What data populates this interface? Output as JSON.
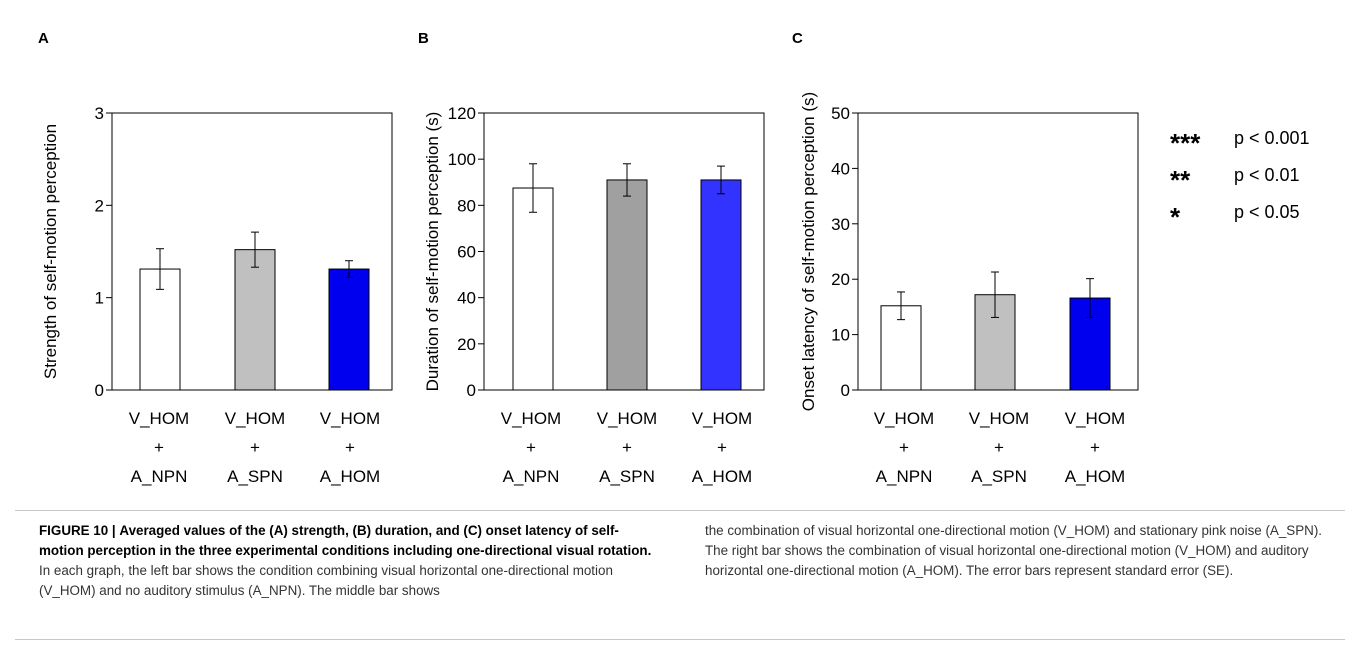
{
  "panels": [
    {
      "panel_label": "A",
      "chart_data": {
        "type": "bar",
        "categories": [
          [
            "V_HOM",
            "+",
            "A_NPN"
          ],
          [
            "V_HOM",
            "+",
            "A_SPN"
          ],
          [
            "V_HOM",
            "+",
            "A_HOM"
          ]
        ],
        "series": [
          {
            "values": [
              1.31,
              1.52,
              1.31
            ],
            "errors": [
              0.22,
              0.19,
              0.09
            ]
          }
        ],
        "bar_colors": [
          "#ffffff",
          "#c0c0c0",
          "#0000ee"
        ],
        "ylabel": "Strength of self-motion perception",
        "ylim": [
          0,
          3
        ],
        "yticks": [
          "0",
          "1",
          "2",
          "3"
        ],
        "grid": false
      }
    },
    {
      "panel_label": "B",
      "chart_data": {
        "type": "bar",
        "categories": [
          [
            "V_HOM",
            "+",
            "A_NPN"
          ],
          [
            "V_HOM",
            "+",
            "A_SPN"
          ],
          [
            "V_HOM",
            "+",
            "A_HOM"
          ]
        ],
        "series": [
          {
            "values": [
              87.5,
              91,
              91
            ],
            "errors": [
              10.5,
              7,
              6
            ]
          }
        ],
        "bar_colors": [
          "#ffffff",
          "#a0a0a0",
          "#3333ff"
        ],
        "ylabel": "Duration of self-motion perception (s)",
        "ylim": [
          0,
          120
        ],
        "yticks": [
          "0",
          "20",
          "40",
          "60",
          "80",
          "100",
          "120"
        ],
        "grid": false
      }
    },
    {
      "panel_label": "C",
      "chart_data": {
        "type": "bar",
        "categories": [
          [
            "V_HOM",
            "+",
            "A_NPN"
          ],
          [
            "V_HOM",
            "+",
            "A_SPN"
          ],
          [
            "V_HOM",
            "+",
            "A_HOM"
          ]
        ],
        "series": [
          {
            "values": [
              15.2,
              17.2,
              16.6
            ],
            "errors": [
              2.5,
              4.1,
              3.5
            ]
          }
        ],
        "bar_colors": [
          "#ffffff",
          "#c0c0c0",
          "#0000ee"
        ],
        "ylabel": "Onset latency of self-motion perception (s)",
        "ylim": [
          0,
          50
        ],
        "yticks": [
          "0",
          "10",
          "20",
          "30",
          "40",
          "50"
        ],
        "grid": false
      }
    }
  ],
  "legend": [
    {
      "stars": "***",
      "text": "p < 0.001"
    },
    {
      "stars": "**",
      "text": "p < 0.01"
    },
    {
      "stars": "*",
      "text": "p < 0.05"
    }
  ],
  "caption": {
    "label": "FIGURE 10 |",
    "title": "Averaged values of the (A) strength, (B) duration, and (C) onset latency of self-motion perception in the three experimental conditions including one-directional visual rotation.",
    "text_left": "In each graph, the left bar shows the condition combining visual horizontal one-directional motion (V_HOM) and no auditory stimulus (A_NPN). The middle bar shows",
    "text_right": "the combination of visual horizontal one-directional motion (V_HOM) and stationary pink noise (A_SPN). The right bar shows the combination of visual horizontal one-directional motion (V_HOM) and auditory horizontal one-directional motion (A_HOM). The error bars represent standard error (SE)."
  }
}
